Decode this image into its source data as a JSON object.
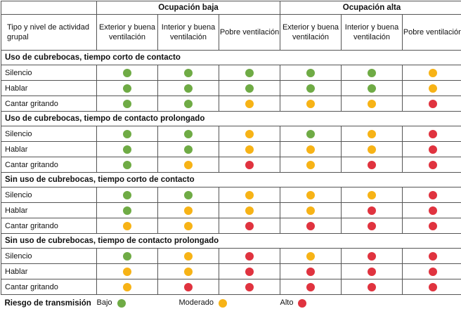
{
  "header": {
    "col0": "Tipo y nivel de actividad grupal",
    "groups": [
      "Ocupación baja",
      "Ocupación alta"
    ],
    "subcols": [
      "Exterior y buena ventilación",
      "Interior y buena ventilación",
      "Pobre ventilación",
      "Exterior y buena ventilación",
      "Interior y buena ventilación",
      "Pobre ventilación"
    ]
  },
  "sections": [
    {
      "title": "Uso de cubrebocas, tiempo corto de contacto",
      "rows": [
        {
          "activity": "Silencio",
          "risk": [
            "Bajo",
            "Bajo",
            "Bajo",
            "Bajo",
            "Bajo",
            "Moderado"
          ]
        },
        {
          "activity": "Hablar",
          "risk": [
            "Bajo",
            "Bajo",
            "Bajo",
            "Bajo",
            "Bajo",
            "Moderado"
          ]
        },
        {
          "activity": "Cantar gritando",
          "risk": [
            "Bajo",
            "Bajo",
            "Moderado",
            "Moderado",
            "Moderado",
            "Alto"
          ]
        }
      ]
    },
    {
      "title": "Uso de cubrebocas, tiempo de contacto prolongado",
      "rows": [
        {
          "activity": "Silencio",
          "risk": [
            "Bajo",
            "Bajo",
            "Moderado",
            "Bajo",
            "Moderado",
            "Alto"
          ]
        },
        {
          "activity": "Hablar",
          "risk": [
            "Bajo",
            "Bajo",
            "Moderado",
            "Moderado",
            "Moderado",
            "Alto"
          ]
        },
        {
          "activity": "Cantar gritando",
          "risk": [
            "Bajo",
            "Moderado",
            "Alto",
            "Moderado",
            "Alto",
            "Alto"
          ]
        }
      ]
    },
    {
      "title": "Sin uso de cubrebocas, tiempo corto de contacto",
      "rows": [
        {
          "activity": "Silencio",
          "risk": [
            "Bajo",
            "Bajo",
            "Moderado",
            "Moderado",
            "Moderado",
            "Alto"
          ]
        },
        {
          "activity": "Hablar",
          "risk": [
            "Bajo",
            "Moderado",
            "Moderado",
            "Moderado",
            "Alto",
            "Alto"
          ]
        },
        {
          "activity": "Cantar gritando",
          "risk": [
            "Moderado",
            "Moderado",
            "Alto",
            "Alto",
            "Alto",
            "Alto"
          ]
        }
      ]
    },
    {
      "title": "Sin uso de cubrebocas, tiempo de contacto prolongado",
      "rows": [
        {
          "activity": "Silencio",
          "risk": [
            "Bajo",
            "Moderado",
            "Alto",
            "Moderado",
            "Alto",
            "Alto"
          ]
        },
        {
          "activity": "Hablar",
          "risk": [
            "Moderado",
            "Moderado",
            "Alto",
            "Alto",
            "Alto",
            "Alto"
          ]
        },
        {
          "activity": "Cantar gritando",
          "risk": [
            "Moderado",
            "Alto",
            "Alto",
            "Alto",
            "Alto",
            "Alto"
          ]
        }
      ]
    }
  ],
  "legend": {
    "title": "Riesgo de transmisión",
    "items": [
      {
        "label": "Bajo",
        "key": "Bajo"
      },
      {
        "label": "Moderado",
        "key": "Moderado"
      },
      {
        "label": "Alto",
        "key": "Alto"
      }
    ]
  },
  "colors": {
    "Bajo": "#6fab45",
    "Moderado": "#f7b316",
    "Alto": "#e0333f"
  }
}
